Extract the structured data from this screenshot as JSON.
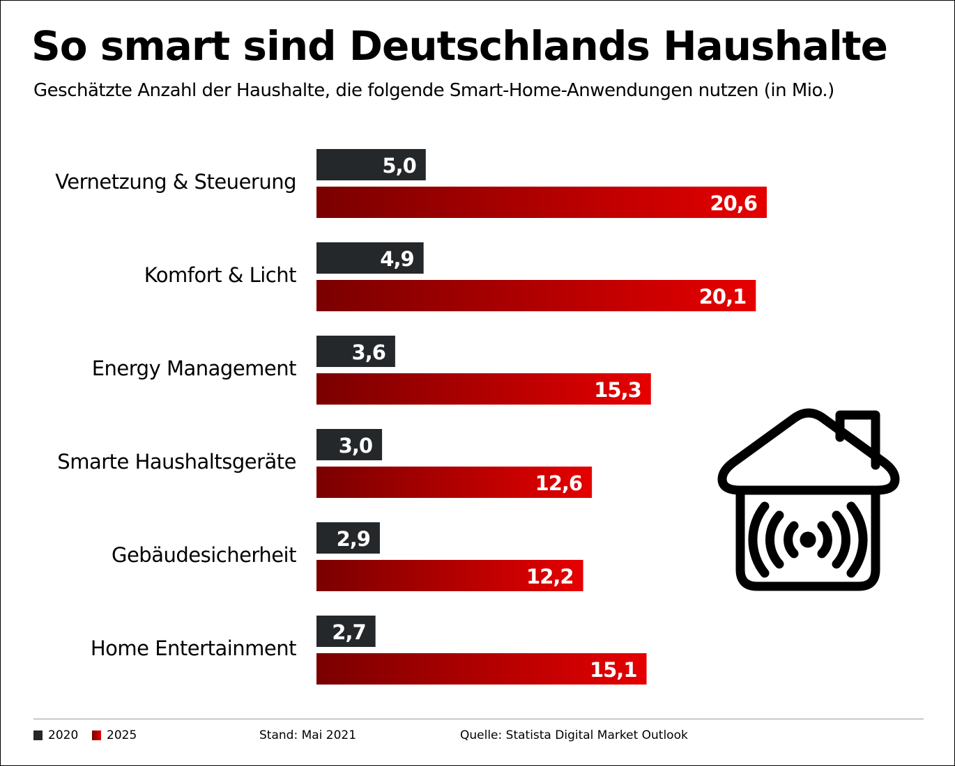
{
  "title": "So smart sind Deutschlands Haushalte",
  "subtitle": "Geschätzte Anzahl der Haushalte, die folgende Smart-Home-Anwendungen nutzen (in Mio.)",
  "chart_data": {
    "type": "bar",
    "orientation": "horizontal",
    "title": "So smart sind Deutschlands Haushalte",
    "subtitle": "Geschätzte Anzahl der Haushalte, die folgende Smart-Home-Anwendungen nutzen (in Mio.)",
    "categories": [
      "Vernetzung & Steuerung",
      "Komfort & Licht",
      "Energy Management",
      "Smarte Haushaltsgeräte",
      "Gebäudesicherheit",
      "Home Entertainment"
    ],
    "series": [
      {
        "name": "2020",
        "values": [
          5.0,
          4.9,
          3.6,
          3.0,
          2.9,
          2.7
        ],
        "labels": [
          "5,0",
          "4,9",
          "3,6",
          "3,0",
          "2,9",
          "2,7"
        ],
        "color": "#25282b"
      },
      {
        "name": "2025",
        "values": [
          20.6,
          20.1,
          15.3,
          12.6,
          12.2,
          15.1
        ],
        "labels": [
          "20,6",
          "20,1",
          "15,3",
          "12,6",
          "12,2",
          "15,1"
        ],
        "color": "#e60000",
        "gradient_from": "#7a0000"
      }
    ],
    "xlim": [
      0,
      20.6
    ],
    "grid": false,
    "legend_placement": "bottom-left"
  },
  "icon": "smart-home-house-wifi-icon",
  "footer": {
    "legend": [
      "2020",
      "2025"
    ],
    "stand": "Stand: Mai 2021",
    "source": "Quelle: Statista Digital Market Outlook"
  }
}
